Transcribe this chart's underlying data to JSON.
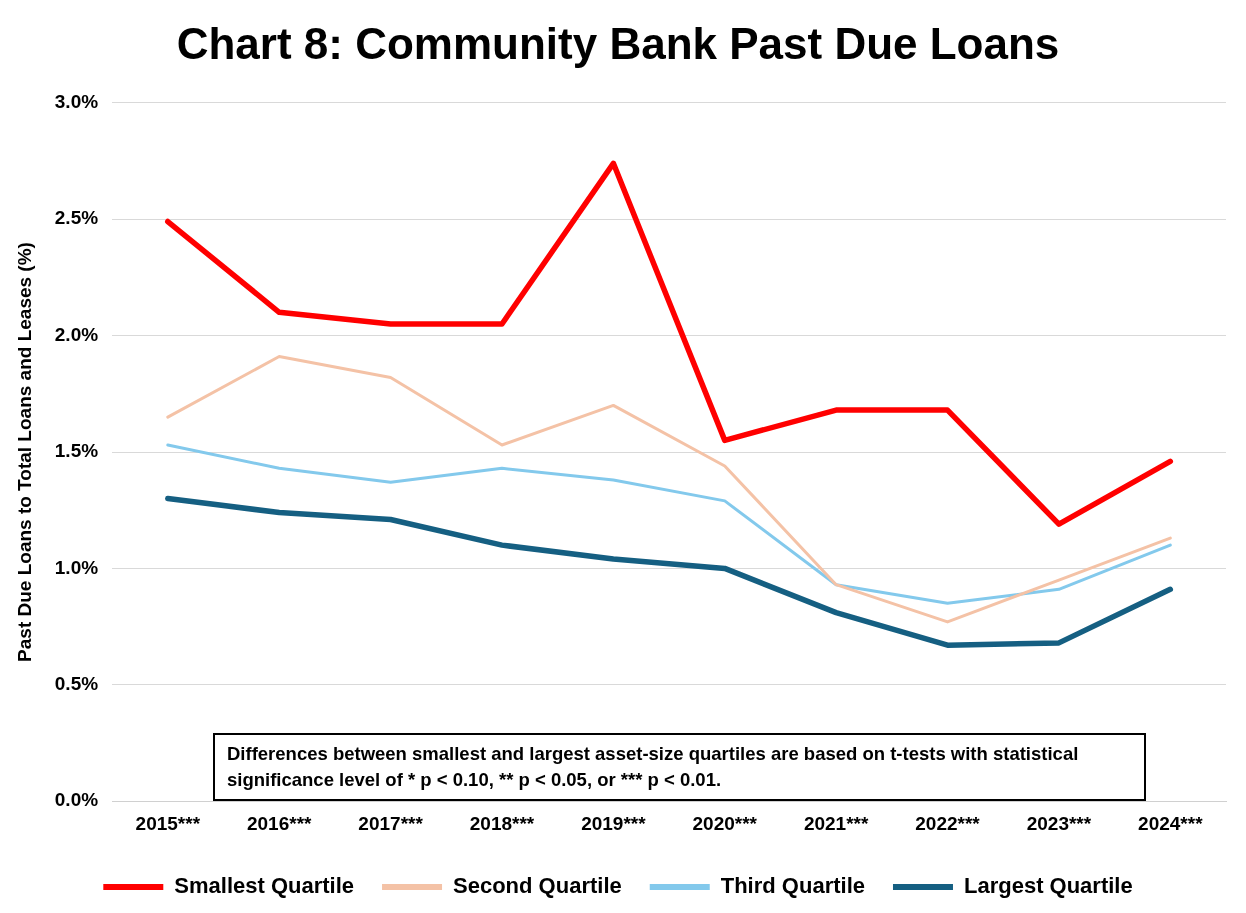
{
  "chart_data": {
    "type": "line",
    "title": "Chart 8: Community Bank Past Due Loans",
    "ylabel": "Past Due Loans to Total Loans and Leases (%)",
    "categories": [
      "2015***",
      "2016***",
      "2017***",
      "2018***",
      "2019***",
      "2020***",
      "2021***",
      "2022***",
      "2023***",
      "2024***"
    ],
    "series": [
      {
        "name": "Smallest Quartile",
        "color": "#ff0000",
        "values": [
          2.49,
          2.1,
          2.05,
          2.05,
          2.74,
          1.55,
          1.68,
          1.68,
          1.19,
          1.46
        ]
      },
      {
        "name": "Second Quartile",
        "color": "#f4c2a6",
        "values": [
          1.65,
          1.91,
          1.82,
          1.53,
          1.7,
          1.44,
          0.93,
          0.77,
          0.95,
          1.13
        ]
      },
      {
        "name": "Third Quartile",
        "color": "#83c9ec",
        "values": [
          1.53,
          1.43,
          1.37,
          1.43,
          1.38,
          1.29,
          0.93,
          0.85,
          0.91,
          1.1
        ]
      },
      {
        "name": "Largest Quartile",
        "color": "#155f82",
        "values": [
          1.3,
          1.24,
          1.21,
          1.1,
          1.04,
          1.0,
          0.81,
          0.67,
          0.68,
          0.91
        ]
      }
    ],
    "ylim": [
      0,
      3
    ],
    "yticks": [
      {
        "value": 0,
        "label": "0.0%"
      },
      {
        "value": 0.5,
        "label": "0.5%"
      },
      {
        "value": 1,
        "label": "1.0%"
      },
      {
        "value": 1.5,
        "label": "1.5%"
      },
      {
        "value": 2,
        "label": "2.0%"
      },
      {
        "value": 2.5,
        "label": "2.5%"
      },
      {
        "value": 3,
        "label": "3.0%"
      }
    ],
    "grid": "y",
    "legend": "bottom",
    "marker": "none",
    "line_style": "solid",
    "annotations": [
      "Differences between smallest and largest asset-size quartiles are based on t-tests with statistical significance level of * p < 0.10, ** p < 0.05, or *** p < 0.01."
    ]
  }
}
